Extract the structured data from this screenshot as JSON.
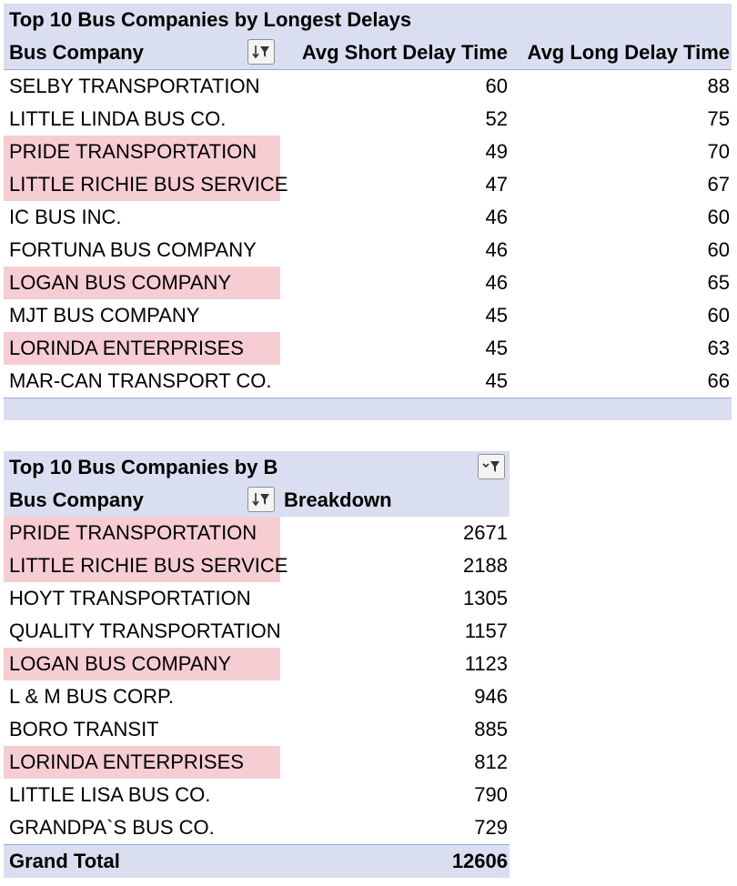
{
  "table1": {
    "title": "Top 10 Bus Companies by Longest Delays",
    "headers": [
      "Bus Company",
      "Avg Short Delay Time",
      "Avg Long Delay Time"
    ],
    "rows": [
      {
        "company": "SELBY TRANSPORTATION",
        "short": "60",
        "long": "88",
        "highlight": false
      },
      {
        "company": "LITTLE LINDA BUS CO.",
        "short": "52",
        "long": "75",
        "highlight": false
      },
      {
        "company": "PRIDE TRANSPORTATION",
        "short": "49",
        "long": "70",
        "highlight": true
      },
      {
        "company": "LITTLE RICHIE BUS SERVICE",
        "short": "47",
        "long": "67",
        "highlight": true
      },
      {
        "company": "IC BUS INC.",
        "short": "46",
        "long": "60",
        "highlight": false
      },
      {
        "company": "FORTUNA BUS COMPANY",
        "short": "46",
        "long": "60",
        "highlight": false
      },
      {
        "company": "LOGAN BUS COMPANY",
        "short": "46",
        "long": "65",
        "highlight": true
      },
      {
        "company": "MJT BUS COMPANY",
        "short": "45",
        "long": "60",
        "highlight": false
      },
      {
        "company": "LORINDA ENTERPRISES",
        "short": "45",
        "long": "63",
        "highlight": true
      },
      {
        "company": "MAR-CAN TRANSPORT CO.",
        "short": "45",
        "long": "66",
        "highlight": false
      }
    ]
  },
  "table2": {
    "title": "Top 10 Bus Companies by B",
    "headers": [
      "Bus Company",
      "Breakdown"
    ],
    "rows": [
      {
        "company": "PRIDE TRANSPORTATION",
        "value": "2671",
        "highlight": true
      },
      {
        "company": "LITTLE RICHIE BUS SERVICE",
        "value": "2188",
        "highlight": true
      },
      {
        "company": "HOYT TRANSPORTATION",
        "value": "1305",
        "highlight": false
      },
      {
        "company": "QUALITY TRANSPORTATION",
        "value": "1157",
        "highlight": false
      },
      {
        "company": "LOGAN BUS COMPANY",
        "value": "1123",
        "highlight": true
      },
      {
        "company": "L & M BUS CORP.",
        "value": "946",
        "highlight": false
      },
      {
        "company": "BORO TRANSIT",
        "value": "885",
        "highlight": false
      },
      {
        "company": "LORINDA ENTERPRISES",
        "value": "812",
        "highlight": true
      },
      {
        "company": "LITTLE LISA BUS CO.",
        "value": "790",
        "highlight": false
      },
      {
        "company": "GRANDPA`S BUS CO.",
        "value": "729",
        "highlight": false
      }
    ],
    "total_label": "Grand Total",
    "total_value": "12606"
  },
  "colors": {
    "header_bg": "#d9dff0",
    "highlight": "#f6cdd2",
    "border": "#9aaad6"
  },
  "icons": {
    "sort_filter": "sort-filter-icon",
    "filter": "filter-dropdown-icon"
  }
}
